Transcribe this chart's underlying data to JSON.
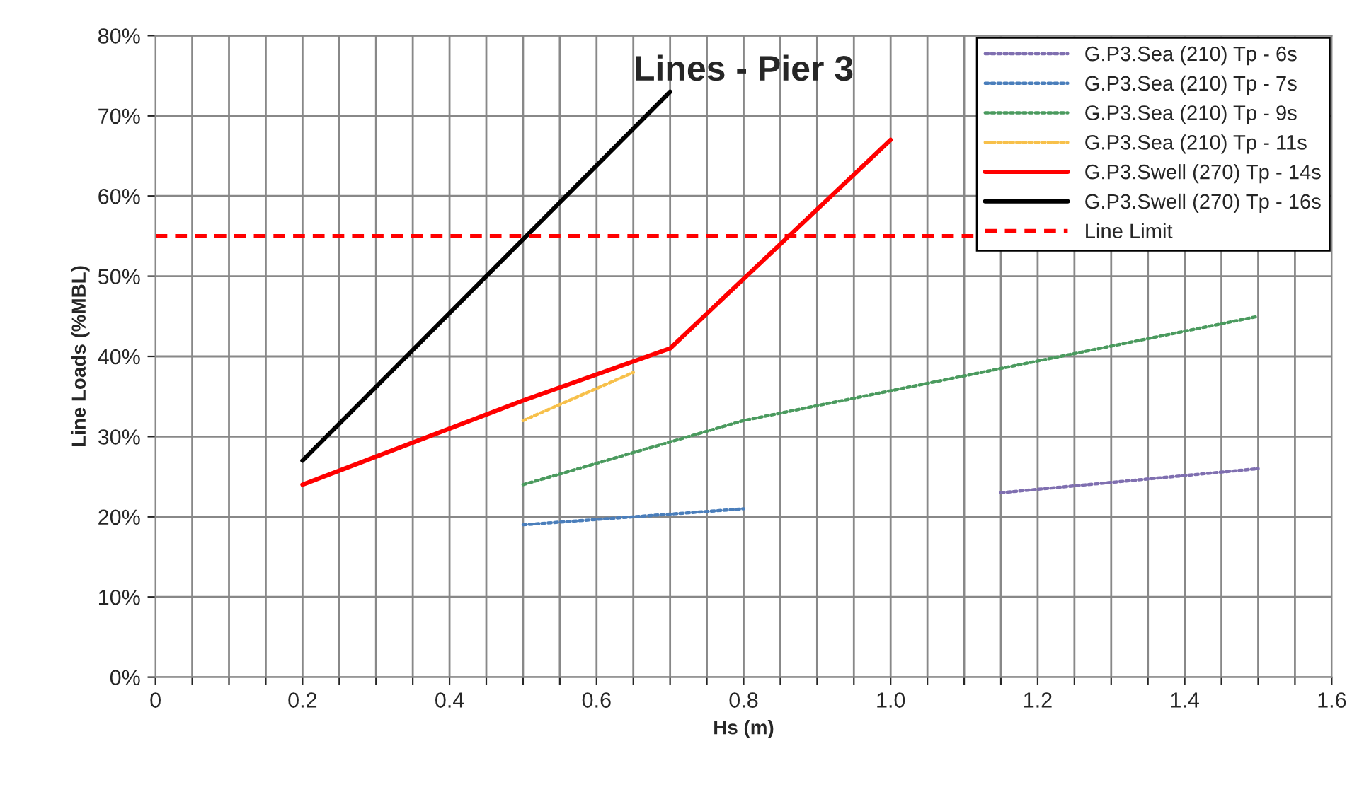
{
  "chart_data": {
    "type": "line",
    "title": "Lines - Pier 3",
    "xlabel": "Hs (m)",
    "ylabel": "Line Loads (%MBL)",
    "series": [
      {
        "name": "G.P3.Sea (210) Tp - 6s",
        "color": "#7f6fb0",
        "line_style": "dotted",
        "x": [
          1.15,
          1.5
        ],
        "values": [
          23,
          26
        ]
      },
      {
        "name": "G.P3.Sea (210) Tp - 7s",
        "color": "#4a7ebb",
        "line_style": "dotted",
        "x": [
          0.5,
          0.8
        ],
        "values": [
          19,
          21
        ]
      },
      {
        "name": "G.P3.Sea (210) Tp - 9s",
        "color": "#4a9a5e",
        "line_style": "dotted",
        "x": [
          0.5,
          0.8,
          1.5
        ],
        "values": [
          24,
          32,
          45
        ]
      },
      {
        "name": "G.P3.Sea (210) Tp - 11s",
        "color": "#f7c04a",
        "line_style": "dotted",
        "x": [
          0.5,
          0.65
        ],
        "values": [
          32,
          38
        ]
      },
      {
        "name": "G.P3.Swell (270) Tp - 14s",
        "color": "#ff0000",
        "line_style": "solid",
        "x": [
          0.2,
          0.5,
          0.7,
          1.0
        ],
        "values": [
          24,
          34.5,
          41,
          67
        ]
      },
      {
        "name": "G.P3.Swell (270) Tp - 16s",
        "color": "#000000",
        "line_style": "solid",
        "x": [
          0.2,
          0.7
        ],
        "values": [
          27,
          73
        ]
      }
    ],
    "ref_lines": [
      {
        "axis": "y",
        "value": 55,
        "label": "Line Limit",
        "color": "#ff0000",
        "line_style": "dashed"
      }
    ],
    "xlim": [
      0,
      1.6
    ],
    "xticks": [
      0,
      {
        "value": 0.05,
        "label": null
      },
      {
        "value": 0.1,
        "label": null
      },
      {
        "value": 0.15,
        "label": null
      },
      {
        "value": 0.2,
        "label": "0.2"
      },
      {
        "value": 0.25,
        "label": null
      },
      {
        "value": 0.3,
        "label": null
      },
      {
        "value": 0.35,
        "label": null
      },
      {
        "value": 0.4,
        "label": "0.4"
      },
      {
        "value": 0.45,
        "label": null
      },
      {
        "value": 0.5,
        "label": null
      },
      {
        "value": 0.55,
        "label": null
      },
      {
        "value": 0.6,
        "label": "0.6"
      },
      {
        "value": 0.65,
        "label": null
      },
      {
        "value": 0.7,
        "label": null
      },
      {
        "value": 0.75,
        "label": null
      },
      {
        "value": 0.8,
        "label": "0.8"
      },
      {
        "value": 0.85,
        "label": null
      },
      {
        "value": 0.9,
        "label": null
      },
      {
        "value": 0.95,
        "label": null
      },
      {
        "value": 1.0,
        "label": "1.0"
      },
      {
        "value": 1.05,
        "label": null
      },
      {
        "value": 1.1,
        "label": null
      },
      {
        "value": 1.15,
        "label": null
      },
      {
        "value": 1.2,
        "label": "1.2"
      },
      {
        "value": 1.25,
        "label": null
      },
      {
        "value": 1.3,
        "label": null
      },
      {
        "value": 1.35,
        "label": null
      },
      {
        "value": 1.4,
        "label": "1.4"
      },
      {
        "value": 1.45,
        "label": null
      },
      {
        "value": 1.5,
        "label": null
      },
      {
        "value": 1.55,
        "label": null
      },
      {
        "value": 1.6,
        "label": "1.6"
      }
    ],
    "ylim": [
      0,
      80
    ],
    "yticks": [
      {
        "value": 0,
        "label": "0%"
      },
      {
        "value": 10,
        "label": "10%"
      },
      {
        "value": 20,
        "label": "20%"
      },
      {
        "value": 30,
        "label": "30%"
      },
      {
        "value": 40,
        "label": "40%"
      },
      {
        "value": 50,
        "label": "50%"
      },
      {
        "value": 60,
        "label": "60%"
      },
      {
        "value": 70,
        "label": "70%"
      },
      {
        "value": 80,
        "label": "80%"
      }
    ],
    "grid": true,
    "legend": "top right",
    "marker": "none"
  }
}
